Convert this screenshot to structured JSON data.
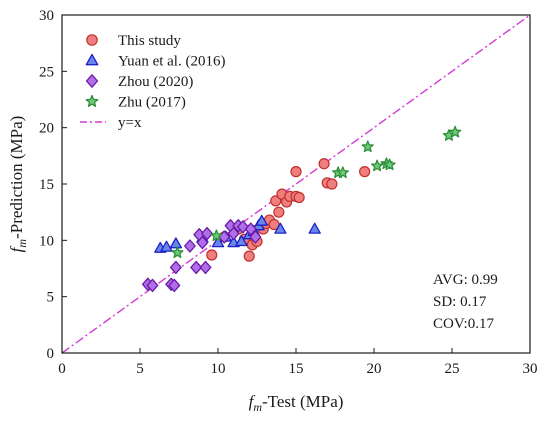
{
  "chart_data": {
    "type": "scatter",
    "title": "",
    "xlabel": {
      "symbol": "f",
      "subscript": "m",
      "text": "-Test (MPa)"
    },
    "ylabel": {
      "symbol": "f",
      "subscript": "m",
      "text": "-Prediction (MPa)"
    },
    "xlim": [
      0,
      30
    ],
    "ylim": [
      0,
      30
    ],
    "xticks": [
      0,
      5,
      10,
      15,
      20,
      25,
      30
    ],
    "yticks": [
      0,
      5,
      10,
      15,
      20,
      25,
      30
    ],
    "grid": false,
    "legend_position": "top-left",
    "series": [
      {
        "name": "This study",
        "marker": "circle",
        "fill": "#ef7f7f",
        "stroke": "#c0302e",
        "points": [
          [
            9.6,
            8.7
          ],
          [
            10.4,
            10.3
          ],
          [
            11.3,
            11.0
          ],
          [
            11.7,
            10.1
          ],
          [
            12.0,
            8.6
          ],
          [
            12.2,
            9.6
          ],
          [
            12.5,
            9.9
          ],
          [
            12.9,
            11.0
          ],
          [
            13.1,
            11.5
          ],
          [
            13.3,
            11.8
          ],
          [
            13.6,
            11.4
          ],
          [
            13.7,
            13.5
          ],
          [
            13.9,
            12.5
          ],
          [
            14.1,
            14.1
          ],
          [
            14.4,
            13.4
          ],
          [
            14.6,
            13.9
          ],
          [
            15.0,
            13.9
          ],
          [
            15.0,
            16.1
          ],
          [
            15.2,
            13.8
          ],
          [
            16.8,
            16.8
          ],
          [
            17.0,
            15.1
          ],
          [
            17.3,
            15.0
          ],
          [
            19.4,
            16.1
          ]
        ]
      },
      {
        "name": "Yuan et al. (2016)",
        "marker": "triangle",
        "fill": "#6b86e8",
        "stroke": "#1b22c7",
        "points": [
          [
            6.3,
            9.3
          ],
          [
            6.7,
            9.4
          ],
          [
            7.3,
            9.7
          ],
          [
            9.0,
            10.2
          ],
          [
            10.0,
            9.8
          ],
          [
            10.5,
            10.3
          ],
          [
            11.0,
            9.8
          ],
          [
            11.5,
            9.9
          ],
          [
            12.0,
            10.5
          ],
          [
            12.3,
            10.8
          ],
          [
            12.6,
            11.3
          ],
          [
            12.8,
            11.7
          ],
          [
            14.0,
            11.0
          ],
          [
            16.2,
            11.0
          ]
        ]
      },
      {
        "name": "Zhou (2020)",
        "marker": "diamond",
        "fill": "#b06ee8",
        "stroke": "#6a1ba8",
        "points": [
          [
            5.5,
            6.1
          ],
          [
            5.8,
            6.0
          ],
          [
            7.0,
            6.1
          ],
          [
            7.2,
            6.0
          ],
          [
            7.3,
            7.6
          ],
          [
            8.2,
            9.5
          ],
          [
            8.6,
            7.6
          ],
          [
            8.8,
            10.5
          ],
          [
            9.0,
            9.8
          ],
          [
            9.2,
            7.6
          ],
          [
            9.3,
            10.6
          ],
          [
            10.4,
            10.3
          ],
          [
            10.8,
            11.3
          ],
          [
            11.0,
            10.6
          ],
          [
            11.3,
            11.3
          ],
          [
            11.6,
            11.2
          ],
          [
            12.1,
            11.0
          ],
          [
            12.4,
            10.3
          ]
        ]
      },
      {
        "name": "Zhu (2017)",
        "marker": "star",
        "fill": "#6fcb7a",
        "stroke": "#2e8f3a",
        "points": [
          [
            7.4,
            8.9
          ],
          [
            9.9,
            10.4
          ],
          [
            17.7,
            16.0
          ],
          [
            18.0,
            16.0
          ],
          [
            19.6,
            18.3
          ],
          [
            20.2,
            16.6
          ],
          [
            20.8,
            16.8
          ],
          [
            21.0,
            16.7
          ],
          [
            24.8,
            19.3
          ],
          [
            25.2,
            19.6
          ]
        ]
      }
    ],
    "reference_line": {
      "name": "y=x",
      "style": "dash-dot",
      "color": "#d23ad6",
      "from": [
        0,
        0
      ],
      "to": [
        30,
        30
      ]
    },
    "stats": [
      "AVG: 0.99",
      "SD: 0.17",
      "COV:0.17"
    ]
  }
}
